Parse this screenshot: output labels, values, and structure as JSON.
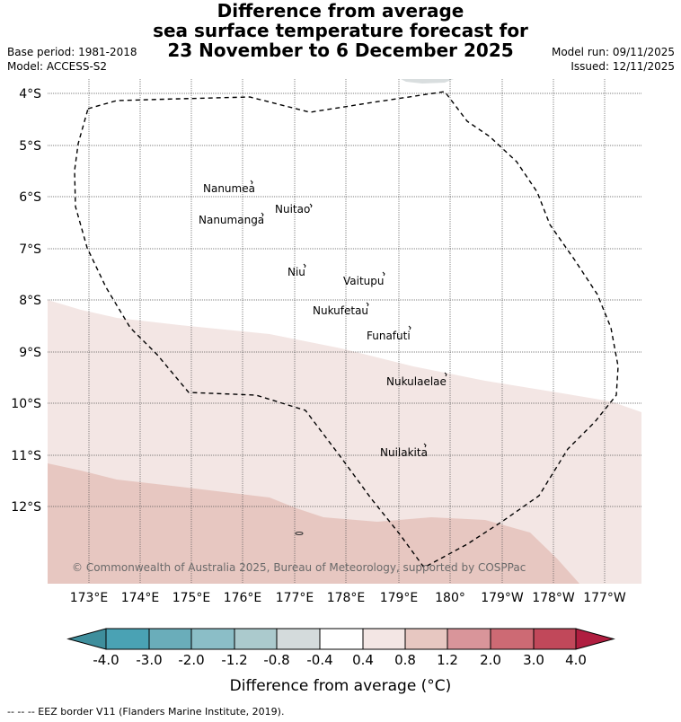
{
  "title": {
    "line1": "Difference from average",
    "line2": "sea surface temperature forecast for",
    "line3": "23 November to 6 December 2025"
  },
  "meta": {
    "base_period": "Base period: 1981-2018",
    "model": "Model: ACCESS-S2",
    "model_run": "Model run: 09/11/2025",
    "issued": "Issued: 12/11/2025"
  },
  "map": {
    "lat_labels": [
      "4°S",
      "5°S",
      "6°S",
      "7°S",
      "8°S",
      "9°S",
      "10°S",
      "11°S",
      "12°S"
    ],
    "lon_labels": [
      "173°E",
      "174°E",
      "175°E",
      "176°E",
      "177°E",
      "178°E",
      "179°E",
      "180°",
      "179°W",
      "178°W",
      "177°W"
    ],
    "islands": [
      {
        "name": "Nanumea"
      },
      {
        "name": "Nuitao"
      },
      {
        "name": "Nanumanga"
      },
      {
        "name": "Niu"
      },
      {
        "name": "Vaitupu"
      },
      {
        "name": "Nukufetau"
      },
      {
        "name": "Funafuti"
      },
      {
        "name": "Nukulaelae"
      },
      {
        "name": "Nuilakita"
      }
    ],
    "copyright": "© Commonwealth of Australia 2025, Bureau of Meteorology, supported by COSPPac",
    "anomaly_categories": [
      "0.4 to 0.8",
      "0.8 to 1.2"
    ]
  },
  "colorbar": {
    "ticks": [
      "-4.0",
      "-3.0",
      "-2.0",
      "-1.2",
      "-0.8",
      "-0.4",
      "0.4",
      "0.8",
      "1.2",
      "2.0",
      "3.0",
      "4.0"
    ],
    "colors": {
      "under": "#3e8e9c",
      "bins": [
        "#4aa2b4",
        "#6aadba",
        "#8bbec7",
        "#abcacd",
        "#d4dbdc",
        "#ffffff",
        "#f3e6e4",
        "#e7c7c1",
        "#d9959a",
        "#cd6a74",
        "#c1485a"
      ],
      "over": "#b01e40"
    },
    "label": "Difference from average (°C)"
  },
  "footnote": "-- -- -- EEZ border V11 (Flanders Marine Institute, 2019)."
}
